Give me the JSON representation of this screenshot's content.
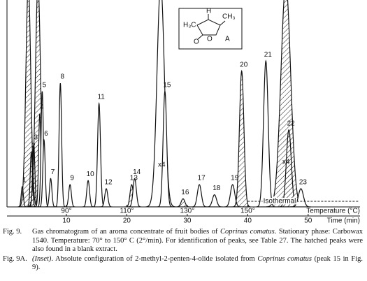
{
  "chart_data": {
    "type": "chromatogram",
    "peak_labels": [
      "1",
      null,
      "2",
      "3",
      null,
      "4",
      "5",
      "6",
      "7",
      "8",
      "9",
      "10",
      "11",
      "12",
      "13",
      "14",
      null,
      "15",
      "16",
      "17",
      "18",
      "19",
      "20",
      "21",
      null,
      "22",
      "23"
    ],
    "x": [
      2.7,
      3.7,
      4.2,
      4.6,
      5.3,
      5.6,
      6.0,
      6.3,
      7.4,
      9.0,
      10.6,
      13.6,
      15.4,
      16.6,
      20.8,
      21.3,
      25.6,
      26.3,
      29.3,
      32.0,
      34.5,
      37.5,
      39.0,
      43.0,
      46.3,
      46.8,
      48.8
    ],
    "values": [
      10,
      110,
      27,
      31,
      110,
      46,
      57,
      33,
      14,
      61,
      11,
      13,
      51,
      9,
      11,
      14,
      110,
      57,
      4,
      11,
      6,
      11,
      67,
      72,
      110,
      38,
      9
    ],
    "hatched": [
      false,
      true,
      true,
      true,
      true,
      false,
      false,
      false,
      false,
      false,
      false,
      false,
      false,
      false,
      true,
      false,
      false,
      false,
      true,
      false,
      false,
      false,
      true,
      false,
      true,
      true,
      false
    ],
    "ylim": [
      0,
      100
    ],
    "xlim": [
      0,
      58
    ],
    "xticks": [
      10,
      20,
      30,
      40,
      50
    ],
    "xlabel": "Time (min)",
    "x2lim": [
      70,
      150
    ],
    "x2ticks": [
      {
        "value": 90,
        "label": "90°"
      },
      {
        "value": 110,
        "label": "110°"
      },
      {
        "value": 130,
        "label": "130°"
      },
      {
        "value": 150,
        "label": "150°"
      }
    ],
    "x2label": "Temperature (°C)",
    "isothermal": {
      "label": "Isothermal",
      "from": 40
    },
    "annotations": [
      "x4",
      "x4"
    ],
    "inset": {
      "label": "A",
      "atoms": [
        "H₃C",
        "H",
        "CH₃",
        "O",
        "O"
      ]
    }
  },
  "caption": [
    {
      "label": "Fig. 9.",
      "parts": [
        "Gas chromatogram of an aroma concentrate of fruit bodies of ",
        "Coprinus comatus",
        ". Stationary phase: Carbowax 1540. Temperature: 70° to 150° C (2°/min). For identification of peaks, see Table 27. The hatched peaks were also found in a blank extract."
      ]
    },
    {
      "label": "Fig. 9A.",
      "parts": [
        "",
        "(Inset)",
        ". Absolute configuration of 2-methyl-2-penten-4-olide isolated from ",
        "Coprinus comatus",
        " (peak 15 in Fig. 9)."
      ]
    }
  ]
}
